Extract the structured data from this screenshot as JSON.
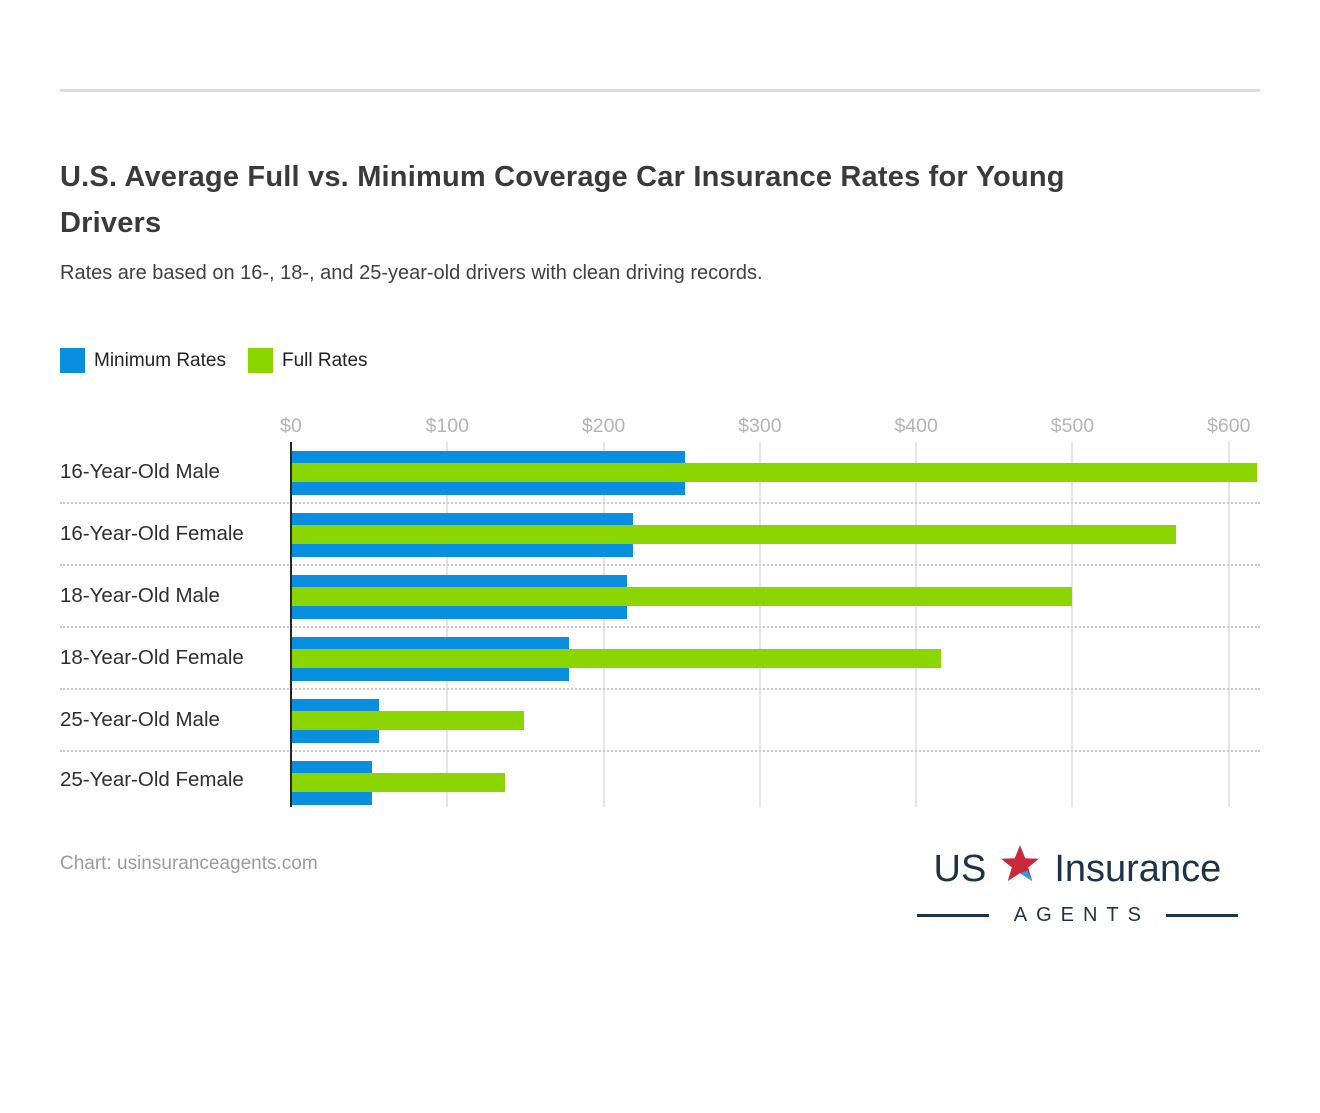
{
  "header": {
    "title_lines": [
      "U.S. Average Full vs. Minimum Coverage Car Insurance Rates for Young",
      "Drivers"
    ],
    "subtitle": "Rates are based on 16-, 18-, and 25-year-old drivers with clean driving records."
  },
  "chart_data": {
    "type": "bar",
    "orientation": "horizontal",
    "title": "U.S. Average Full vs. Minimum Coverage Car Insurance Rates for Young Drivers",
    "subtitle": "Rates are based on 16-, 18-, and 25-year-old drivers with clean driving records.",
    "categories": [
      "16-Year-Old Male",
      "16-Year-Old Female",
      "18-Year-Old Male",
      "18-Year-Old Female",
      "25-Year-Old Male",
      "25-Year-Old Female"
    ],
    "series": [
      {
        "name": "Minimum Rates",
        "color": "#0a8fe0",
        "values": [
          252,
          219,
          215,
          178,
          56,
          52
        ]
      },
      {
        "name": "Full Rates",
        "color": "#8bd500",
        "values": [
          618,
          566,
          500,
          416,
          149,
          137
        ]
      }
    ],
    "x_ticks": [
      "$0",
      "$100",
      "$200",
      "$300",
      "$400",
      "$500",
      "$600"
    ],
    "tick_values": [
      0,
      100,
      200,
      300,
      400,
      500,
      600
    ],
    "xlim": [
      0,
      620
    ],
    "grid": "vertical",
    "legend_position": "top-left"
  },
  "footer": {
    "credit": "Chart: usinsuranceagents.com",
    "logo": {
      "word1": "US",
      "word2": "Insurance",
      "word3": "AGENTS",
      "star_color": "#c9293b",
      "accent_color": "#2b9fe0",
      "text_color": "#1d3348"
    }
  }
}
